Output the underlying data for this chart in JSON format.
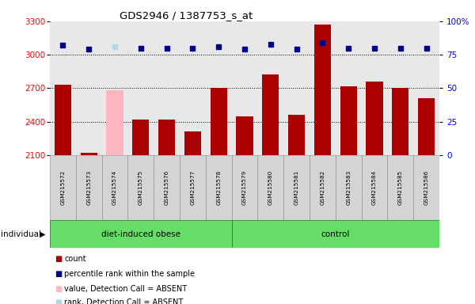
{
  "title": "GDS2946 / 1387753_s_at",
  "samples": [
    "GSM215572",
    "GSM215573",
    "GSM215574",
    "GSM215575",
    "GSM215576",
    "GSM215577",
    "GSM215578",
    "GSM215579",
    "GSM215580",
    "GSM215581",
    "GSM215582",
    "GSM215583",
    "GSM215584",
    "GSM215585",
    "GSM215586"
  ],
  "counts": [
    2730,
    2120,
    2680,
    2420,
    2420,
    2310,
    2700,
    2450,
    2820,
    2460,
    3270,
    2720,
    2760,
    2700,
    2610
  ],
  "absent_mask": [
    false,
    false,
    true,
    false,
    false,
    false,
    false,
    false,
    false,
    false,
    false,
    false,
    false,
    false,
    false
  ],
  "percentile_ranks": [
    82,
    79,
    81,
    80,
    80,
    80,
    81,
    79,
    83,
    79,
    84,
    80,
    80,
    80,
    80
  ],
  "absent_rank_mask": [
    false,
    false,
    true,
    false,
    false,
    false,
    false,
    false,
    false,
    false,
    false,
    false,
    false,
    false,
    false
  ],
  "groups": [
    "diet-induced obese",
    "diet-induced obese",
    "diet-induced obese",
    "diet-induced obese",
    "diet-induced obese",
    "diet-induced obese",
    "diet-induced obese",
    "control",
    "control",
    "control",
    "control",
    "control",
    "control",
    "control",
    "control"
  ],
  "bar_color_normal": "#AA0000",
  "bar_color_absent": "#FFB6C1",
  "dot_color_normal": "#00008B",
  "dot_color_absent": "#ADD8E6",
  "ylim_left": [
    2100,
    3300
  ],
  "ylim_right": [
    0,
    100
  ],
  "yticks_left": [
    2100,
    2400,
    2700,
    3000,
    3300
  ],
  "yticks_right": [
    0,
    25,
    50,
    75,
    100
  ],
  "grid_values": [
    2400,
    2700,
    3000
  ],
  "plot_bg": "#e8e8e8",
  "legend_items": [
    {
      "label": "count",
      "color": "#AA0000",
      "marker": "s"
    },
    {
      "label": "percentile rank within the sample",
      "color": "#00008B",
      "marker": "s"
    },
    {
      "label": "value, Detection Call = ABSENT",
      "color": "#FFB6C1",
      "marker": "s"
    },
    {
      "label": "rank, Detection Call = ABSENT",
      "color": "#ADD8E6",
      "marker": "s"
    }
  ]
}
